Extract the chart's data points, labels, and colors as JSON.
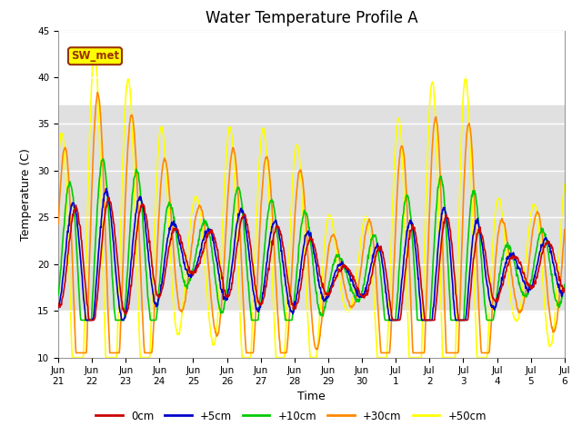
{
  "title": "Water Temperature Profile A",
  "xlabel": "Time",
  "ylabel": "Temperature (C)",
  "ylim": [
    10,
    45
  ],
  "series_colors": [
    "#cc0000",
    "#0000cc",
    "#00cc00",
    "#ff8800",
    "#ffff00"
  ],
  "series_labels": [
    "0cm",
    "+5cm",
    "+10cm",
    "+30cm",
    "+50cm"
  ],
  "annotation_text": "SW_met",
  "annotation_bg": "#ffff00",
  "annotation_border": "#993300",
  "shading_ymin": 15,
  "shading_ymax": 37,
  "shading_color": "#e0e0e0",
  "bg_color": "#ffffff",
  "title_fontsize": 12,
  "label_fontsize": 9,
  "tick_fontsize": 7.5,
  "tick_positions": [
    0,
    1,
    2,
    3,
    4,
    5,
    6,
    7,
    8,
    9,
    10,
    11,
    12,
    13,
    14,
    15
  ],
  "tick_labels": [
    "Jun 21",
    "Jun 22",
    "Jun 23",
    "Jun 24",
    "Jun 25",
    "Jun 26",
    "Jun 27",
    "Jun 28",
    "Jun 29",
    "Jun 30",
    "Jul 1",
    "Jul 2",
    "Jul 3",
    "Jul 4",
    "Jul 5",
    "Jul 6"
  ],
  "xlim": [
    0,
    15
  ],
  "yticks": [
    10,
    15,
    20,
    25,
    30,
    35,
    40,
    45
  ]
}
